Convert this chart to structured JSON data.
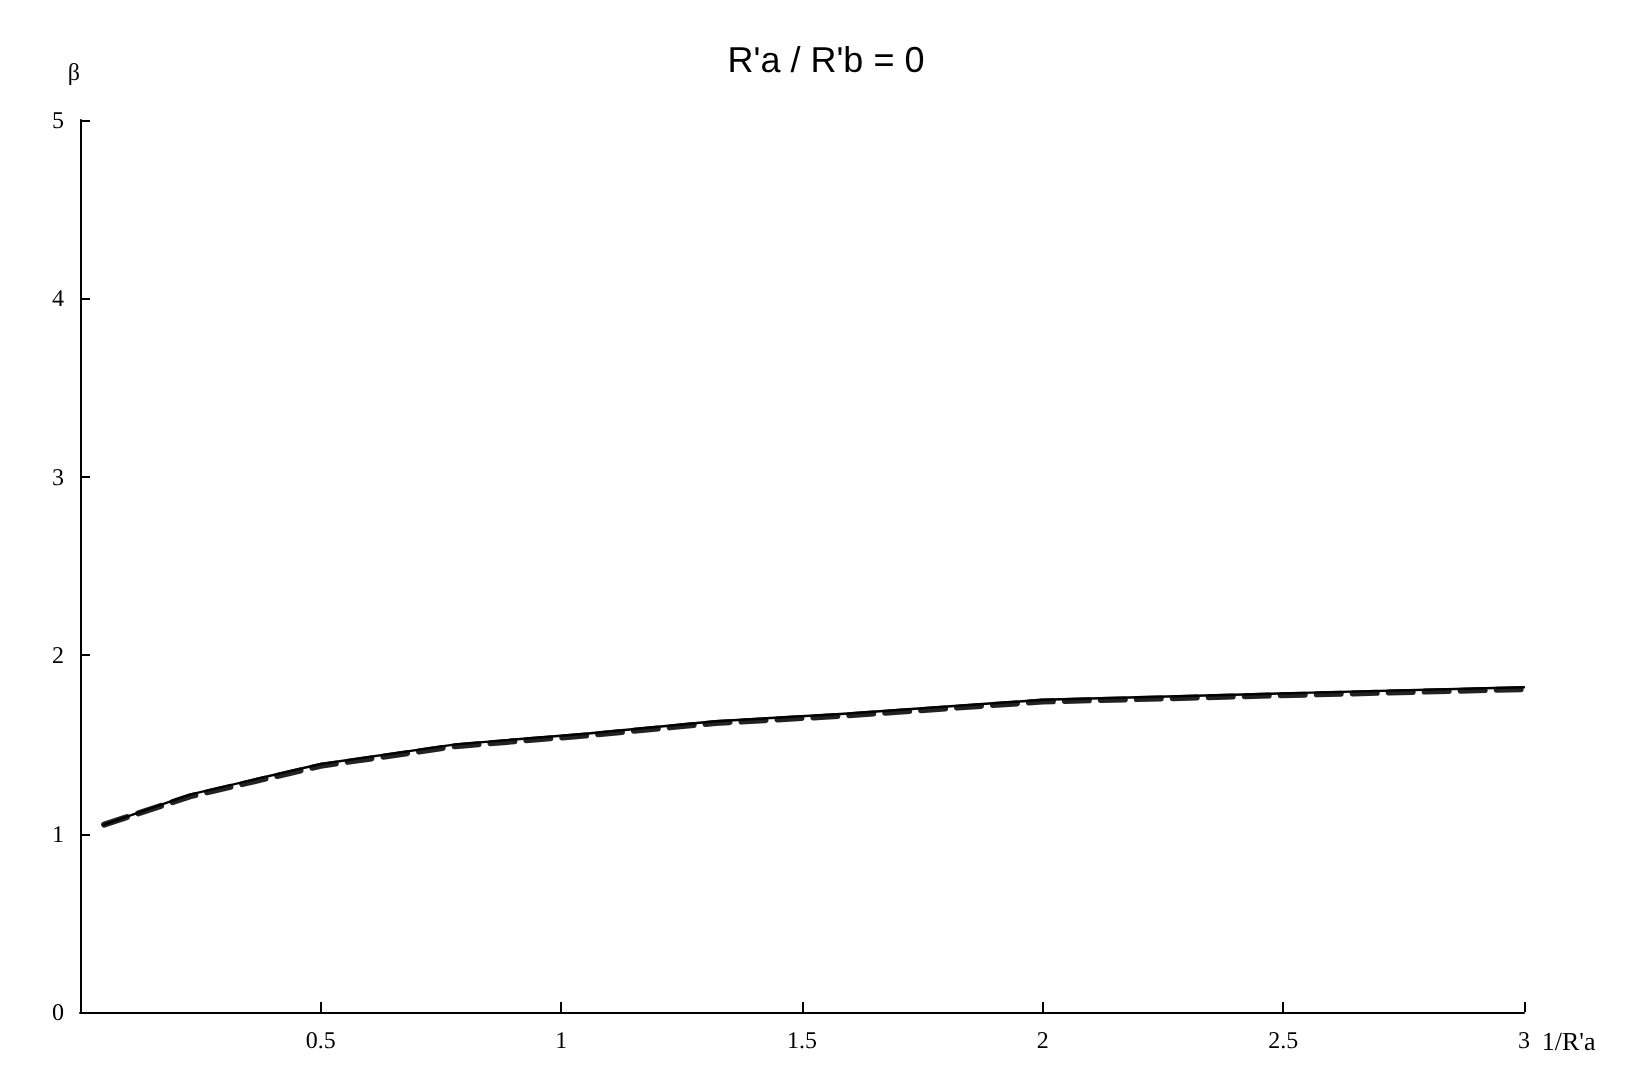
{
  "chart_data": {
    "type": "line",
    "title": "R'a / R'b = 0",
    "xlabel": "1/R'a",
    "ylabel": "β",
    "xlim": [
      0,
      3
    ],
    "xticks": [
      0.5,
      1,
      1.5,
      2,
      2.5,
      3
    ],
    "ylim": [
      0,
      5
    ],
    "yticks": [
      0,
      1,
      2,
      3,
      4,
      5
    ],
    "grid": false,
    "marker": "none",
    "x": [
      0.05,
      0.23,
      0.5,
      0.78,
      1.05,
      1.32,
      1.58,
      2.0,
      2.56,
      3
    ],
    "series": [
      {
        "color": "#000000",
        "line_style": "solid",
        "values": [
          1.05,
          1.22,
          1.39,
          1.5,
          1.56,
          1.63,
          1.67,
          1.75,
          1.79,
          1.82
        ]
      },
      {
        "color": "#222222",
        "line_style": "dashed",
        "values": [
          1.05,
          1.21,
          1.38,
          1.49,
          1.55,
          1.62,
          1.66,
          1.74,
          1.78,
          1.81
        ]
      }
    ]
  }
}
